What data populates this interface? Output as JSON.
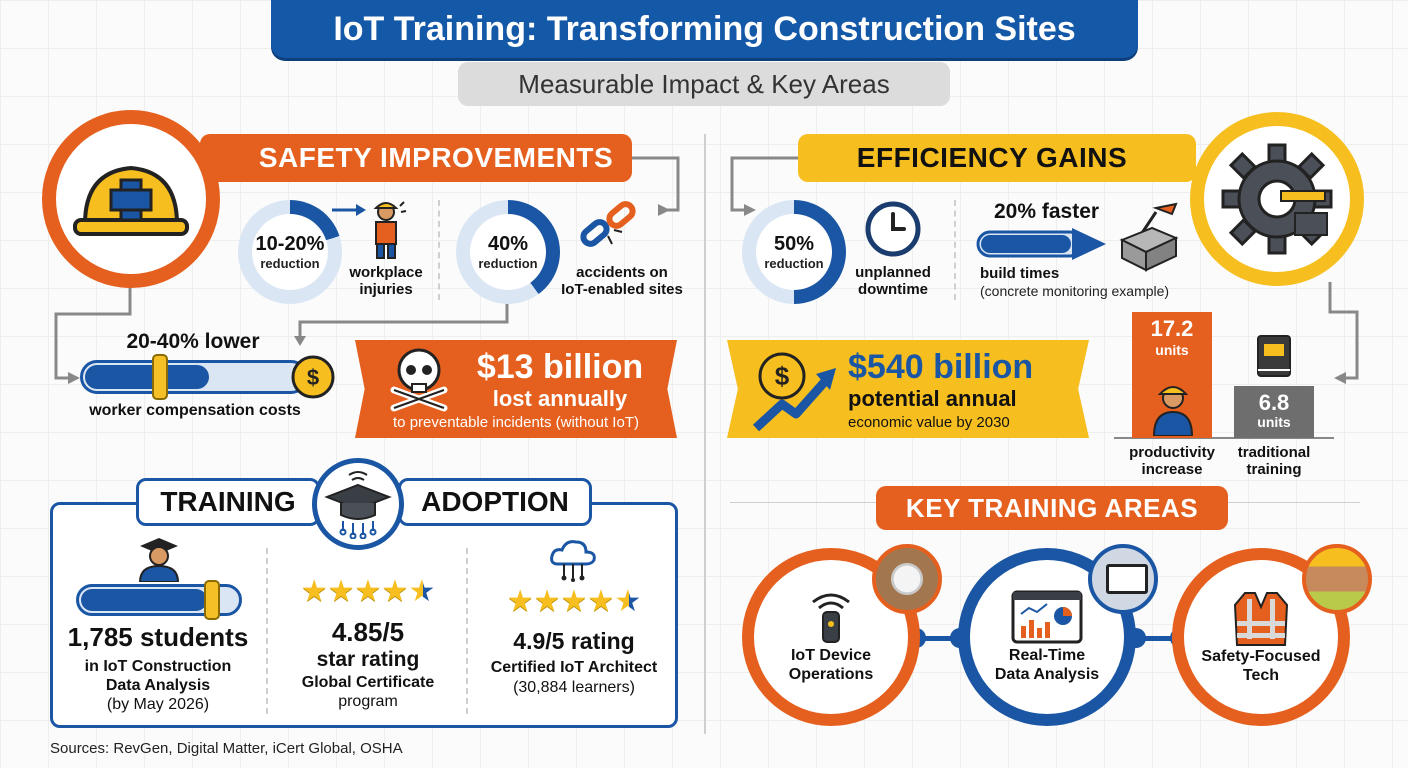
{
  "header": {
    "title": "IoT Training: Transforming Construction Sites",
    "subtitle": "Measurable Impact & Key Areas"
  },
  "colors": {
    "orange": "#e5601e",
    "blue": "#1a56a4",
    "yellow": "#f6bf1f"
  },
  "safety": {
    "banner": "SAFETY IMPROVEMENTS",
    "icon": "hard-hat-icon",
    "stat1": {
      "value": "10-20%",
      "unit": "reduction",
      "label1": "workplace",
      "label2": "injuries",
      "icon": "worker-icon",
      "fraction": 0.2
    },
    "stat2": {
      "value": "40%",
      "unit": "reduction",
      "label1": "accidents on",
      "label2": "IoT-enabled sites",
      "icon": "broken-chain-icon",
      "fraction": 0.4
    },
    "comp": {
      "value": "20-40% lower",
      "label": "worker compensation costs",
      "icon": "coin-icon"
    },
    "loss": {
      "value": "$13 billion",
      "line2": "lost annually",
      "line3": "to preventable incidents (without IoT)",
      "icon": "skull-crossbones-icon"
    }
  },
  "efficiency": {
    "banner": "EFFICIENCY GAINS",
    "icon": "gear-icon",
    "stat1": {
      "value": "50%",
      "unit": "reduction",
      "label1": "unplanned",
      "label2": "downtime",
      "icon": "clock-icon",
      "fraction": 0.5
    },
    "stat2": {
      "value": "20% faster",
      "label1": "build times",
      "label2": "(concrete monitoring example)",
      "icon": "concrete-block-icon"
    },
    "economic": {
      "value": "$540 billion",
      "line2": "potential annual",
      "line3": "economic value by 2030",
      "icon": "dollar-growth-icon"
    },
    "bars": [
      {
        "value": "17.2",
        "unit": "units",
        "label1": "productivity",
        "label2": "increase",
        "icon": "worker-icon"
      },
      {
        "value": "6.8",
        "unit": "units",
        "label1": "traditional",
        "label2": "training",
        "icon": "book-icon"
      }
    ]
  },
  "training": {
    "left_tag": "TRAINING",
    "right_tag": "ADOPTION",
    "icon": "graduation-cap-icon",
    "students": {
      "value": "1,785 students",
      "line2": "in IoT Construction",
      "line3": "Data Analysis",
      "line4": "(by May 2026)",
      "icon": "graduate-icon"
    },
    "rating1": {
      "value": "4.85/5",
      "line2": "star rating",
      "line3": "Global Certificate",
      "line4": "program"
    },
    "rating2": {
      "value": "4.9/5 rating",
      "line2": "Certified IoT Architect",
      "line3": "(30,884 learners)",
      "icon": "cloud-network-icon"
    }
  },
  "key_areas": {
    "banner": "KEY TRAINING AREAS",
    "items": [
      {
        "line1": "IoT Device",
        "line2": "Operations",
        "icon": "iot-device-icon"
      },
      {
        "line1": "Real-Time",
        "line2": "Data Analysis",
        "icon": "dashboard-icon"
      },
      {
        "line1": "Safety-Focused",
        "line2": "Tech",
        "icon": "safety-vest-icon"
      }
    ]
  },
  "sources": "Sources: RevGen, Digital Matter, iCert Global, OSHA"
}
